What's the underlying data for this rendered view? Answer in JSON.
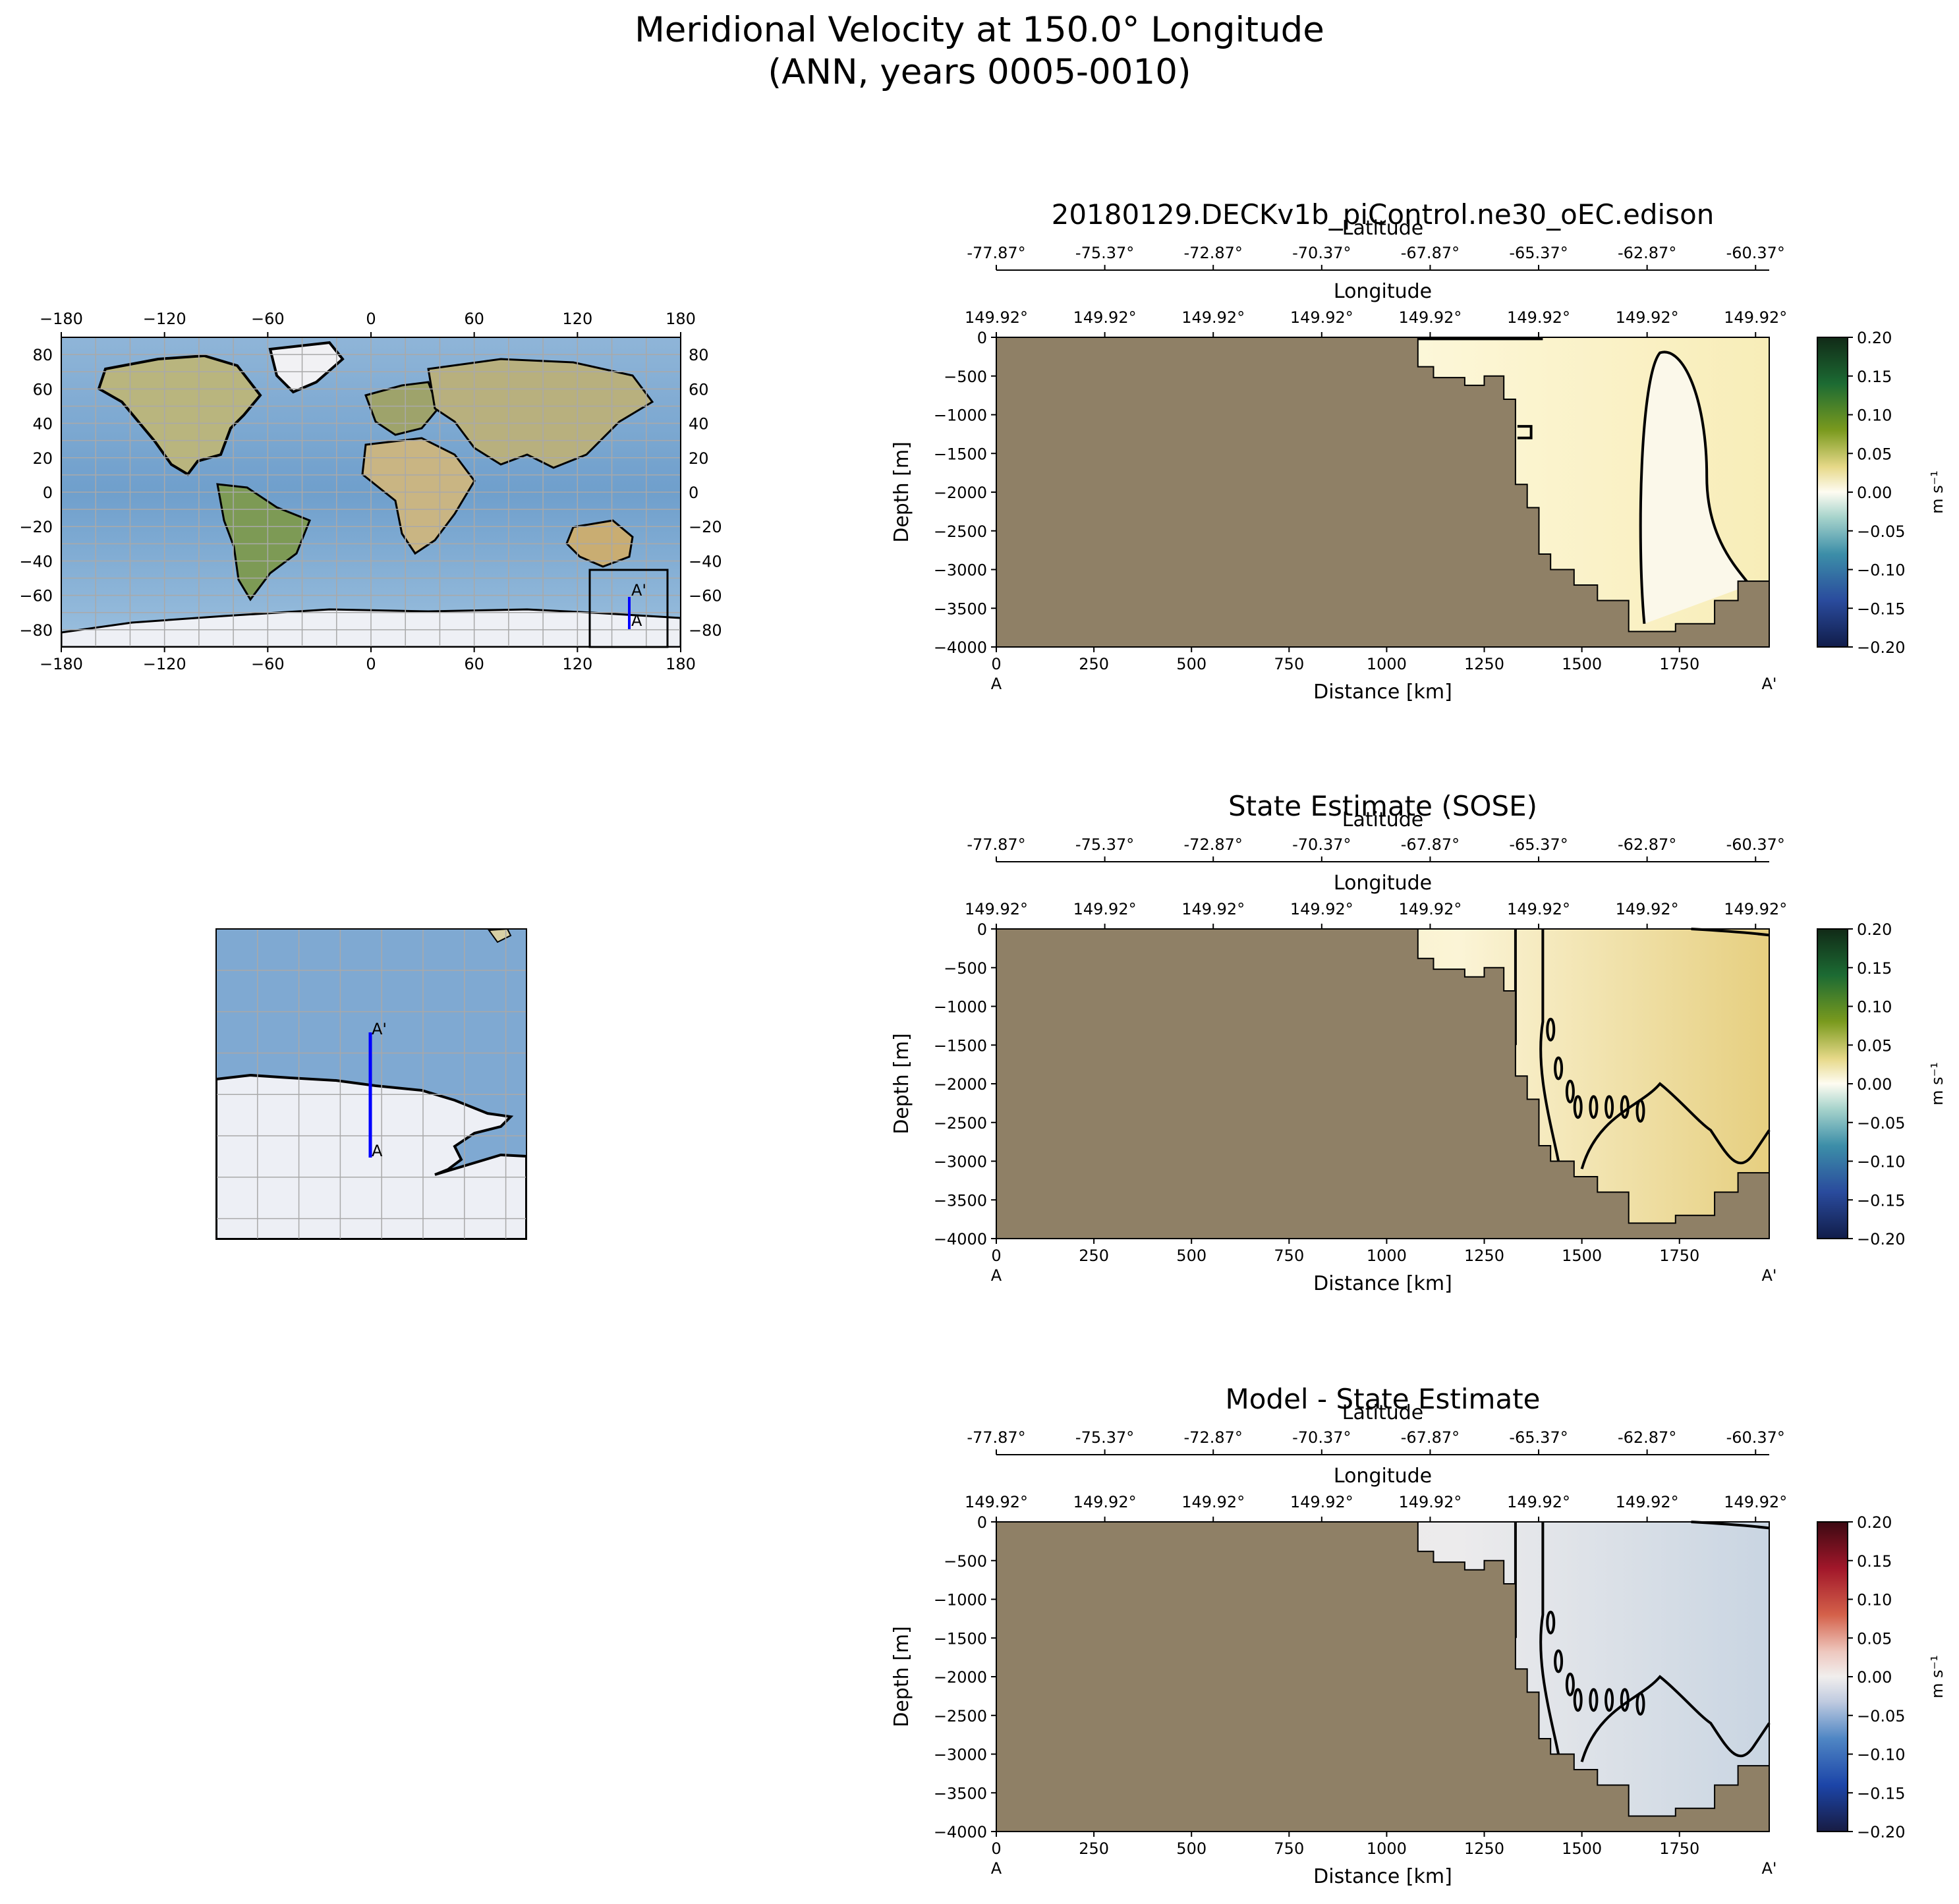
{
  "figure": {
    "title_line1": "Meridional Velocity at 150.0° Longitude",
    "title_line2": "(ANN, years 0005-0010)"
  },
  "world_map": {
    "x_ticks": [
      "−180",
      "−120",
      "−60",
      "0",
      "60",
      "120",
      "180"
    ],
    "y_ticks_left": [
      "80",
      "60",
      "40",
      "20",
      "0",
      "−20",
      "−40",
      "−60",
      "−80"
    ],
    "y_ticks_right": [
      "80",
      "60",
      "40",
      "20",
      "0",
      "−20",
      "−40",
      "−60",
      "−80"
    ],
    "label_a": "A",
    "label_a_prime": "A'"
  },
  "inset_map": {
    "label_a": "A",
    "label_a_prime": "A'"
  },
  "colors": {
    "land_section": "#8f8066",
    "ocean": "#7aa8cf",
    "transect": "#0000ff"
  },
  "chart_data": [
    {
      "type": "heatmap",
      "title": "20180129.DECKv1b_piControl.ne30_oEC.edison",
      "xlabel": "Distance [km]",
      "ylabel": "Depth [m]",
      "lat_label": "Latitude",
      "lon_label": "Longitude",
      "x_ticks": [
        0,
        250,
        500,
        750,
        1000,
        1250,
        1500,
        1750
      ],
      "y_ticks": [
        0,
        -500,
        -1000,
        -1500,
        -2000,
        -2500,
        -3000,
        -3500,
        -4000
      ],
      "xlim": [
        0,
        1980
      ],
      "ylim": [
        -4000,
        0
      ],
      "lat_ticks": [
        "-77.87°",
        "-75.37°",
        "-72.87°",
        "-70.37°",
        "-67.87°",
        "-65.37°",
        "-62.87°",
        "-60.37°"
      ],
      "lon_ticks": [
        "149.92°",
        "149.92°",
        "149.92°",
        "149.92°",
        "149.92°",
        "149.92°",
        "149.92°",
        "149.92°"
      ],
      "start_label": "A",
      "end_label": "A'",
      "colorbar": {
        "label": "m s⁻¹",
        "ticks": [
          "0.20",
          "0.15",
          "0.10",
          "0.05",
          "0.00",
          "−0.05",
          "−0.10",
          "−0.15",
          "−0.20"
        ],
        "colormap": "delta",
        "vmin": -0.2,
        "vmax": 0.2
      }
    },
    {
      "type": "heatmap",
      "title": "State Estimate (SOSE)",
      "xlabel": "Distance [km]",
      "ylabel": "Depth [m]",
      "lat_label": "Latitude",
      "lon_label": "Longitude",
      "x_ticks": [
        0,
        250,
        500,
        750,
        1000,
        1250,
        1500,
        1750
      ],
      "y_ticks": [
        0,
        -500,
        -1000,
        -1500,
        -2000,
        -2500,
        -3000,
        -3500,
        -4000
      ],
      "xlim": [
        0,
        1980
      ],
      "ylim": [
        -4000,
        0
      ],
      "lat_ticks": [
        "-77.87°",
        "-75.37°",
        "-72.87°",
        "-70.37°",
        "-67.87°",
        "-65.37°",
        "-62.87°",
        "-60.37°"
      ],
      "lon_ticks": [
        "149.92°",
        "149.92°",
        "149.92°",
        "149.92°",
        "149.92°",
        "149.92°",
        "149.92°",
        "149.92°"
      ],
      "start_label": "A",
      "end_label": "A'",
      "colorbar": {
        "label": "m s⁻¹",
        "ticks": [
          "0.20",
          "0.15",
          "0.10",
          "0.05",
          "0.00",
          "−0.05",
          "−0.10",
          "−0.15",
          "−0.20"
        ],
        "colormap": "delta",
        "vmin": -0.2,
        "vmax": 0.2
      }
    },
    {
      "type": "heatmap",
      "title": "Model - State Estimate",
      "xlabel": "Distance [km]",
      "ylabel": "Depth [m]",
      "lat_label": "Latitude",
      "lon_label": "Longitude",
      "x_ticks": [
        0,
        250,
        500,
        750,
        1000,
        1250,
        1500,
        1750
      ],
      "y_ticks": [
        0,
        -500,
        -1000,
        -1500,
        -2000,
        -2500,
        -3000,
        -3500,
        -4000
      ],
      "xlim": [
        0,
        1980
      ],
      "ylim": [
        -4000,
        0
      ],
      "lat_ticks": [
        "-77.87°",
        "-75.37°",
        "-72.87°",
        "-70.37°",
        "-67.87°",
        "-65.37°",
        "-62.87°",
        "-60.37°"
      ],
      "lon_ticks": [
        "149.92°",
        "149.92°",
        "149.92°",
        "149.92°",
        "149.92°",
        "149.92°",
        "149.92°",
        "149.92°"
      ],
      "start_label": "A",
      "end_label": "A'",
      "colorbar": {
        "label": "m s⁻¹",
        "ticks": [
          "0.20",
          "0.15",
          "0.10",
          "0.05",
          "0.00",
          "−0.05",
          "−0.10",
          "−0.15",
          "−0.20"
        ],
        "colormap": "balance",
        "vmin": -0.2,
        "vmax": 0.2
      }
    }
  ]
}
